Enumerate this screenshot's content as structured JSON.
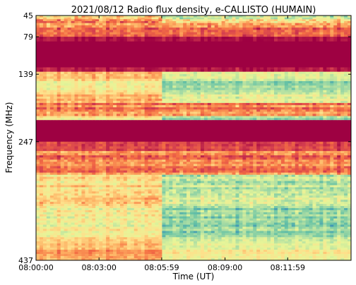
{
  "chart_data": {
    "type": "heatmap",
    "title": "2021/08/12  Radio flux density, e-CALLISTO (HUMAIN)",
    "xlabel": "Time (UT)",
    "ylabel": "Frequency (MHz)",
    "x_ticks": [
      "08:00:00",
      "08:03:00",
      "08:05:59",
      "08:09:00",
      "08:11:59"
    ],
    "x_tick_seconds": [
      0,
      180,
      359,
      540,
      719
    ],
    "x_range_seconds": [
      0,
      900
    ],
    "y_ticks": [
      45,
      79,
      139,
      247,
      437
    ],
    "y_range_mhz": [
      45,
      437
    ],
    "y_axis_inverted": true,
    "grid": false,
    "colormap": "Spectral_r",
    "colormap_stops": [
      "#9e0142",
      "#d53e4f",
      "#f46d43",
      "#fdae61",
      "#fee08b",
      "#e6f598",
      "#abdda4",
      "#66c2a5",
      "#3288bd"
    ],
    "rfi_burst_start_seconds": 359,
    "frequency_bands": [
      {
        "from_mhz": 45,
        "to_mhz": 57,
        "level": 0.38,
        "variation": 0.28
      },
      {
        "from_mhz": 57,
        "to_mhz": 68,
        "level": 0.3,
        "variation": 0.22
      },
      {
        "from_mhz": 68,
        "to_mhz": 79,
        "level": 0.24,
        "variation": 0.16
      },
      {
        "from_mhz": 79,
        "to_mhz": 86,
        "level": 0.03,
        "variation": 0.03
      },
      {
        "from_mhz": 86,
        "to_mhz": 128,
        "level": 0.0,
        "variation": 0.0
      },
      {
        "from_mhz": 128,
        "to_mhz": 135,
        "level": 0.04,
        "variation": 0.05
      },
      {
        "from_mhz": 135,
        "to_mhz": 150,
        "level": 0.46,
        "variation": 0.14
      },
      {
        "from_mhz": 150,
        "to_mhz": 168,
        "level": 0.56,
        "variation": 0.12
      },
      {
        "from_mhz": 168,
        "to_mhz": 185,
        "level": 0.42,
        "variation": 0.14
      },
      {
        "from_mhz": 185,
        "to_mhz": 206,
        "level": 0.3,
        "variation": 0.18
      },
      {
        "from_mhz": 206,
        "to_mhz": 212,
        "level": 0.55,
        "variation": 0.1
      },
      {
        "from_mhz": 212,
        "to_mhz": 247,
        "level": 0.0,
        "variation": 0.0
      },
      {
        "from_mhz": 247,
        "to_mhz": 262,
        "level": 0.12,
        "variation": 0.1
      },
      {
        "from_mhz": 262,
        "to_mhz": 300,
        "level": 0.28,
        "variation": 0.18
      },
      {
        "from_mhz": 300,
        "to_mhz": 350,
        "level": 0.48,
        "variation": 0.18
      },
      {
        "from_mhz": 350,
        "to_mhz": 400,
        "level": 0.58,
        "variation": 0.16
      },
      {
        "from_mhz": 400,
        "to_mhz": 420,
        "level": 0.44,
        "variation": 0.12
      },
      {
        "from_mhz": 420,
        "to_mhz": 437,
        "level": 0.36,
        "variation": 0.12
      }
    ]
  }
}
